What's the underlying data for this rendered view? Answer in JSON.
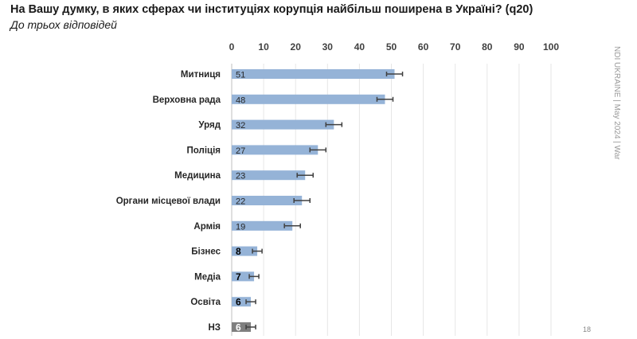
{
  "header": {
    "title": "На Вашу думку, в яких сферах чи інституціях корупція найбільш поширена в Україні? (q20)",
    "subtitle": "До трьох відповідей"
  },
  "side_note": "NDI UKRAINE | May 2024 | War",
  "page_number": "18",
  "chart_data": {
    "type": "bar",
    "orientation": "horizontal",
    "title": "",
    "categories": [
      "Митниця",
      "Верховна рада",
      "Уряд",
      "Поліція",
      "Медицина",
      "Органи місцевої влади",
      "Армія",
      "Бізнес",
      "Медіа",
      "Освіта",
      "НЗ"
    ],
    "values": [
      51,
      48,
      32,
      27,
      23,
      22,
      19,
      8,
      7,
      6,
      6
    ],
    "error_bars": true,
    "xlim": [
      0,
      100
    ],
    "xticks": [
      0,
      10,
      20,
      30,
      40,
      50,
      60,
      70,
      80,
      90,
      100
    ],
    "xaxis_position": "top",
    "grid": true,
    "colors": {
      "bar": "#95b3d7",
      "nz_bar": "#7f7f7f",
      "error": "#404040"
    }
  }
}
